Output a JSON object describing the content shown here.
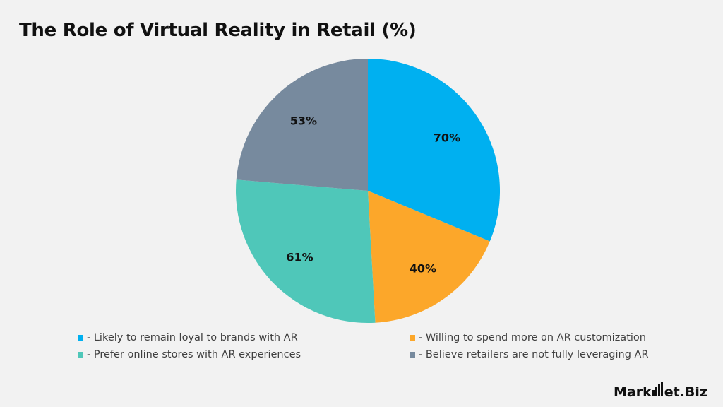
{
  "chart_data": {
    "type": "pie",
    "title": "The Role of Virtual Reality in Retail (%)",
    "categories": [
      "- Likely to remain loyal to brands with AR",
      "- Willing to spend more on AR customization",
      "- Prefer online stores with AR experiences",
      "- Believe retailers are not fully leveraging AR"
    ],
    "values": [
      70,
      40,
      61,
      53
    ],
    "data_labels": [
      "70%",
      "40%",
      "61%",
      "53%"
    ],
    "colors": [
      "#00b0f0",
      "#fca72a",
      "#4fc7b9",
      "#778a9e"
    ],
    "legend_position": "bottom"
  },
  "brand": {
    "text_left": "Mark",
    "text_right": "et.Biz"
  }
}
